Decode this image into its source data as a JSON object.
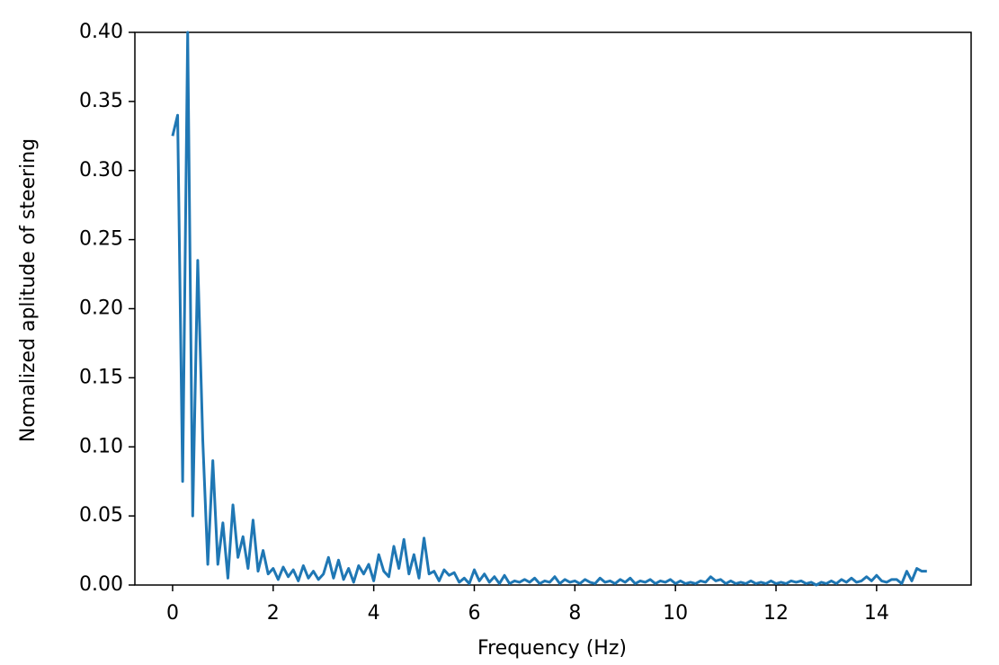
{
  "chart_data": {
    "type": "line",
    "xlabel": "Frequency (Hz)",
    "ylabel": "Nomalized aplitude of steering",
    "x": [
      0,
      0.1,
      0.2,
      0.3,
      0.4,
      0.5,
      0.6,
      0.7,
      0.8,
      0.9,
      1,
      1.1,
      1.2,
      1.3,
      1.4,
      1.5,
      1.6,
      1.7,
      1.8,
      1.9,
      2,
      2.1,
      2.2,
      2.3,
      2.4,
      2.5,
      2.6,
      2.7,
      2.8,
      2.9,
      3,
      3.1,
      3.2,
      3.3,
      3.4,
      3.5,
      3.6,
      3.7,
      3.8,
      3.9,
      4,
      4.1,
      4.2,
      4.3,
      4.4,
      4.5,
      4.6,
      4.7,
      4.8,
      4.9,
      5,
      5.1,
      5.2,
      5.3,
      5.4,
      5.5,
      5.6,
      5.7,
      5.8,
      5.9,
      6,
      6.1,
      6.2,
      6.3,
      6.4,
      6.5,
      6.6,
      6.7,
      6.8,
      6.9,
      7,
      7.1,
      7.2,
      7.3,
      7.4,
      7.5,
      7.6,
      7.7,
      7.8,
      7.9,
      8,
      8.1,
      8.2,
      8.3,
      8.4,
      8.5,
      8.6,
      8.7,
      8.8,
      8.9,
      9,
      9.1,
      9.2,
      9.3,
      9.4,
      9.5,
      9.6,
      9.7,
      9.8,
      9.9,
      10,
      10.1,
      10.2,
      10.3,
      10.4,
      10.5,
      10.6,
      10.7,
      10.8,
      10.9,
      11,
      11.1,
      11.2,
      11.3,
      11.4,
      11.5,
      11.6,
      11.7,
      11.8,
      11.9,
      12,
      12.1,
      12.2,
      12.3,
      12.4,
      12.5,
      12.6,
      12.7,
      12.8,
      12.9,
      13,
      13.1,
      13.2,
      13.3,
      13.4,
      13.5,
      13.6,
      13.7,
      13.8,
      13.9,
      14,
      14.1,
      14.2,
      14.3,
      14.4,
      14.5,
      14.6,
      14.7,
      14.8,
      14.9,
      15
    ],
    "series": [
      {
        "color": "#1f77b4",
        "values": [
          0.325,
          0.34,
          0.075,
          0.4,
          0.05,
          0.235,
          0.105,
          0.015,
          0.09,
          0.015,
          0.045,
          0.005,
          0.058,
          0.02,
          0.035,
          0.012,
          0.047,
          0.01,
          0.025,
          0.008,
          0.012,
          0.004,
          0.013,
          0.006,
          0.011,
          0.003,
          0.014,
          0.005,
          0.01,
          0.004,
          0.008,
          0.02,
          0.005,
          0.018,
          0.004,
          0.012,
          0.002,
          0.014,
          0.008,
          0.015,
          0.003,
          0.022,
          0.01,
          0.006,
          0.028,
          0.012,
          0.033,
          0.008,
          0.022,
          0.005,
          0.034,
          0.008,
          0.01,
          0.003,
          0.011,
          0.007,
          0.009,
          0.002,
          0.005,
          0.001,
          0.011,
          0.003,
          0.008,
          0.002,
          0.006,
          0.001,
          0.007,
          0.001,
          0.003,
          0.002,
          0.004,
          0.002,
          0.005,
          0.001,
          0.003,
          0.002,
          0.006,
          0.001,
          0.004,
          0.002,
          0.003,
          0.001,
          0.004,
          0.002,
          0.001,
          0.005,
          0.002,
          0.003,
          0.001,
          0.004,
          0.002,
          0.005,
          0.001,
          0.003,
          0.002,
          0.004,
          0.001,
          0.003,
          0.002,
          0.004,
          0.001,
          0.003,
          0.001,
          0.002,
          0.001,
          0.003,
          0.002,
          0.006,
          0.003,
          0.004,
          0.001,
          0.003,
          0.001,
          0.002,
          0.001,
          0.003,
          0.001,
          0.002,
          0.001,
          0.003,
          0.001,
          0.002,
          0.001,
          0.003,
          0.002,
          0.003,
          0.001,
          0.002,
          0,
          0.002,
          0.001,
          0.003,
          0.001,
          0.004,
          0.002,
          0.005,
          0.002,
          0.003,
          0.006,
          0.003,
          0.007,
          0.003,
          0.002,
          0.004,
          0.004,
          0.001,
          0.01,
          0.003,
          0.012,
          0.01,
          0.01
        ]
      }
    ],
    "xlim": [
      -0.75,
      15.88
    ],
    "ylim": [
      0,
      0.4
    ],
    "xticks": [
      0,
      2,
      4,
      6,
      8,
      10,
      12,
      14
    ],
    "yticks": [
      {
        "value": 0,
        "label": "0.00"
      },
      0.05,
      {
        "value": 0.1,
        "label": "0.10"
      },
      0.15,
      {
        "value": 0.2,
        "label": "0.20"
      },
      0.25,
      {
        "value": 0.3,
        "label": "0.30"
      },
      0.35,
      {
        "value": 0.4,
        "label": "0.40"
      }
    ],
    "grid": false
  }
}
